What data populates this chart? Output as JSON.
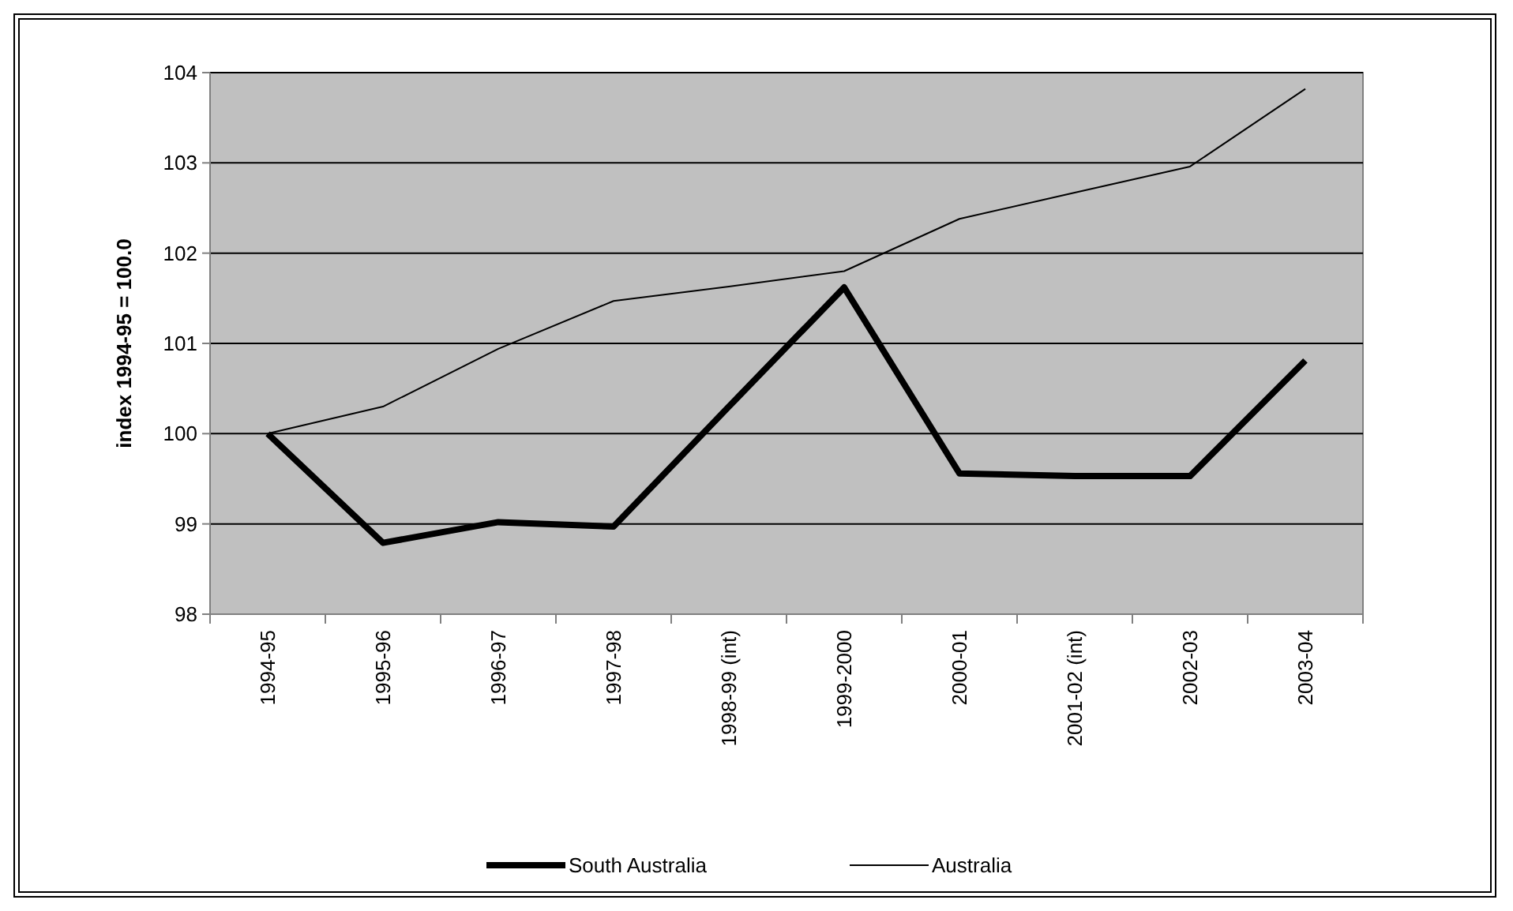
{
  "chart_data": {
    "type": "line",
    "ylabel": "index 1994-95 = 100.0",
    "categories": [
      "1994-95",
      "1995-96",
      "1996-97",
      "1997-98",
      "1998-99 (int)",
      "1999-2000",
      "2000-01",
      "2001-02 (int)",
      "2002-03",
      "2003-04"
    ],
    "series": [
      {
        "name": "South Australia",
        "color": "#000000",
        "values": [
          100,
          98.79,
          99.02,
          98.97,
          100.3,
          101.62,
          99.56,
          99.53,
          99.53,
          100.81
        ]
      },
      {
        "name": "Australia",
        "color": "#000000",
        "values": [
          100,
          100.3,
          100.94,
          101.47,
          101.63,
          101.8,
          102.38,
          102.67,
          102.96,
          103.82
        ]
      }
    ],
    "ylim": [
      98,
      104
    ],
    "yticks": [
      98,
      99,
      100,
      101,
      102,
      103,
      104
    ],
    "grid": "y",
    "legend": "bottom",
    "marker": "none",
    "line_style": "solid"
  }
}
